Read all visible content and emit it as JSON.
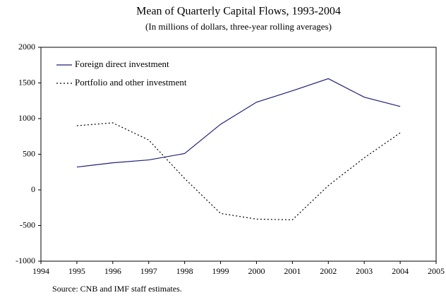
{
  "chart_data": {
    "type": "line",
    "title": "Mean of Quarterly Capital Flows, 1993-2004",
    "subtitle": "(In millions of dollars, three-year rolling averages)",
    "note": "Source: CNB and IMF staff estimates.",
    "x": [
      1995,
      1996,
      1997,
      1998,
      1999,
      2000,
      2001,
      2002,
      2003,
      2004
    ],
    "series": [
      {
        "name": "Foreign direct investment",
        "color": "#1f1f7a",
        "dash": "solid",
        "values": [
          320,
          380,
          420,
          510,
          920,
          1230,
          1390,
          1560,
          1300,
          1170
        ]
      },
      {
        "name": "Portfolio and other investment",
        "color": "#000000",
        "dash": "dotted",
        "values": [
          900,
          940,
          700,
          160,
          -330,
          -410,
          -420,
          60,
          450,
          800
        ]
      }
    ],
    "xlim": [
      1994,
      2005
    ],
    "xticks": [
      1994,
      1995,
      1996,
      1997,
      1998,
      1999,
      2000,
      2001,
      2002,
      2003,
      2004,
      2005
    ],
    "ylim": [
      -1000,
      2000
    ],
    "yticks": [
      -1000,
      -500,
      0,
      500,
      1000,
      1500,
      2000
    ],
    "grid": false,
    "legend": "upper left"
  }
}
